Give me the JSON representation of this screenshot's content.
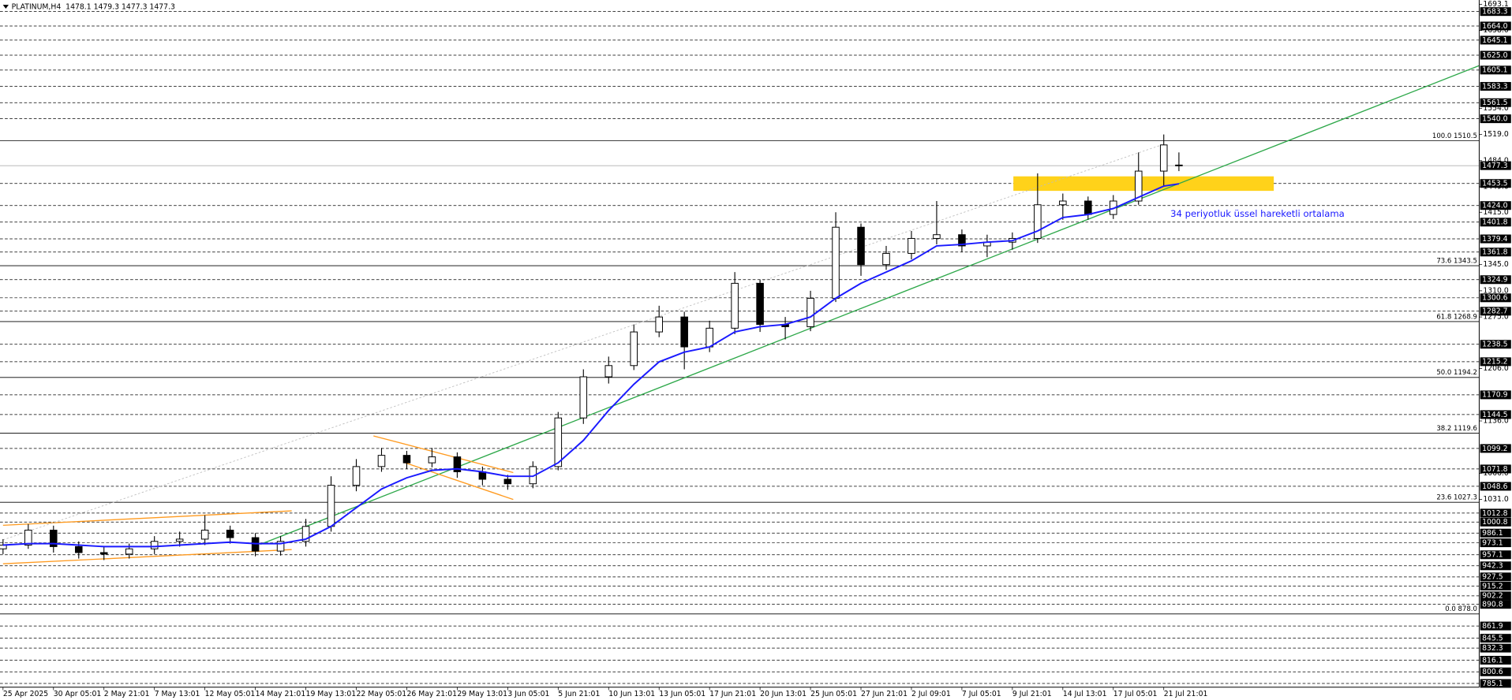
{
  "chart_data": {
    "type": "candlestick",
    "title": "PLATINUM,H4  1478.1 1479.3 1477.3 1477.3",
    "annotation": "34 periyotluk üssel hareketli ortalama",
    "annotation_color": "#1a1aff",
    "up_color": "#ffffff",
    "down_color": "#000000",
    "wick_color": "#000000",
    "x": [
      0,
      0.5,
      1,
      1.5,
      2,
      2.5,
      3,
      3.5,
      4,
      4.5,
      5,
      5.5,
      6,
      6.5,
      7,
      7.5,
      8,
      8.5,
      9,
      9.5,
      10,
      10.5,
      11,
      11.5,
      12,
      12.5,
      13,
      13.5,
      14,
      14.5,
      15,
      15.5,
      16,
      16.5,
      17,
      17.5,
      18,
      18.5,
      19,
      19.5,
      20,
      20.5,
      21,
      21.5,
      22,
      22.5,
      23,
      23.3
    ],
    "open": [
      965,
      970,
      990,
      968,
      960,
      958,
      965,
      975,
      978,
      990,
      980,
      962,
      975,
      995,
      1050,
      1075,
      1090,
      1080,
      1088,
      1068,
      1058,
      1052,
      1075,
      1140,
      1195,
      1210,
      1255,
      1275,
      1235,
      1260,
      1320,
      1265,
      1262,
      1300,
      1395,
      1345,
      1360,
      1380,
      1385,
      1370,
      1375,
      1380,
      1425,
      1430,
      1412,
      1430,
      1470,
      1478.1
    ],
    "high": [
      978,
      998,
      996,
      975,
      968,
      972,
      982,
      988,
      1010,
      996,
      986,
      982,
      1005,
      1062,
      1085,
      1100,
      1096,
      1100,
      1094,
      1075,
      1064,
      1082,
      1148,
      1205,
      1222,
      1265,
      1290,
      1282,
      1270,
      1335,
      1325,
      1275,
      1310,
      1415,
      1400,
      1370,
      1390,
      1430,
      1392,
      1385,
      1388,
      1467,
      1440,
      1436,
      1438,
      1495,
      1519,
      1495
    ],
    "low": [
      958,
      965,
      960,
      952,
      950,
      952,
      958,
      968,
      970,
      972,
      955,
      956,
      968,
      988,
      1042,
      1068,
      1072,
      1074,
      1060,
      1050,
      1044,
      1046,
      1070,
      1132,
      1186,
      1204,
      1248,
      1205,
      1228,
      1252,
      1255,
      1245,
      1256,
      1295,
      1330,
      1338,
      1352,
      1372,
      1362,
      1355,
      1365,
      1374,
      1405,
      1405,
      1406,
      1425,
      1450,
      1470
    ],
    "close": [
      970,
      990,
      968,
      960,
      958,
      965,
      975,
      978,
      990,
      980,
      962,
      975,
      995,
      1050,
      1075,
      1090,
      1080,
      1088,
      1068,
      1058,
      1052,
      1075,
      1140,
      1195,
      1210,
      1255,
      1275,
      1235,
      1260,
      1320,
      1265,
      1262,
      1300,
      1395,
      1345,
      1360,
      1380,
      1385,
      1370,
      1375,
      1380,
      1425,
      1430,
      1412,
      1430,
      1470,
      1505,
      1477.3
    ],
    "ema": {
      "color": "#1a1aff",
      "values": [
        970,
        972,
        972,
        970,
        968,
        968,
        968,
        970,
        972,
        974,
        972,
        972,
        978,
        995,
        1020,
        1045,
        1060,
        1070,
        1072,
        1068,
        1062,
        1062,
        1080,
        1110,
        1150,
        1185,
        1215,
        1228,
        1235,
        1255,
        1262,
        1265,
        1275,
        1300,
        1320,
        1335,
        1350,
        1370,
        1372,
        1375,
        1377,
        1390,
        1408,
        1412,
        1420,
        1435,
        1450,
        1453
      ]
    },
    "lines": [
      {
        "x": [
          5.1,
          29.25
        ],
        "y": [
          971,
          1611
        ],
        "color": "#2ea84a",
        "dash": false
      },
      {
        "x": [
          0,
          5.72
        ],
        "y": [
          996.5,
          1015.8
        ],
        "color": "#ff9a1f",
        "dash": false
      },
      {
        "x": [
          0,
          5.72
        ],
        "y": [
          945,
          964
        ],
        "color": "#ff9a1f",
        "dash": false
      },
      {
        "x": [
          7.34,
          10.11
        ],
        "y": [
          1116,
          1067
        ],
        "color": "#ff9a1f",
        "dash": false
      },
      {
        "x": [
          7.97,
          10.11
        ],
        "y": [
          1080,
          1031
        ],
        "color": "#ff9a1f",
        "dash": false
      },
      {
        "x": [
          0,
          23
        ],
        "y": [
          977,
          1506
        ],
        "color": "#bdbdbd",
        "dash": true
      }
    ],
    "zones": [
      {
        "x": [
          20.02,
          25.18
        ],
        "y": [
          1443.6,
          1463
        ],
        "color": "#ffd21a"
      }
    ],
    "xlim": [
      -0.06,
      29.25
    ],
    "ylim": [
      780,
      1693.6
    ],
    "xticks": [
      {
        "value": 0,
        "label": "25 Apr 2025"
      },
      {
        "value": 1,
        "label": "30 Apr 05:01"
      },
      {
        "value": 2,
        "label": "2 May 21:01"
      },
      {
        "value": 3,
        "label": "7 May 13:01"
      },
      {
        "value": 4,
        "label": "12 May 05:01"
      },
      {
        "value": 5,
        "label": "14 May 21:01"
      },
      {
        "value": 6,
        "label": "19 May 13:01"
      },
      {
        "value": 7,
        "label": "22 May 05:01"
      },
      {
        "value": 8,
        "label": "26 May 21:01"
      },
      {
        "value": 9,
        "label": "29 May 13:01"
      },
      {
        "value": 10,
        "label": "3 Jun 05:01"
      },
      {
        "value": 11,
        "label": "5 Jun 21:01"
      },
      {
        "value": 12,
        "label": "10 Jun 13:01"
      },
      {
        "value": 13,
        "label": "13 Jun 05:01"
      },
      {
        "value": 14,
        "label": "17 Jun 21:01"
      },
      {
        "value": 15,
        "label": "20 Jun 13:01"
      },
      {
        "value": 16,
        "label": "25 Jun 05:01"
      },
      {
        "value": 17,
        "label": "27 Jun 21:01"
      },
      {
        "value": 18,
        "label": "2 Jul 09:01"
      },
      {
        "value": 19,
        "label": "7 Jul 05:01"
      },
      {
        "value": 20,
        "label": "9 Jul 21:01"
      },
      {
        "value": 21,
        "label": "14 Jul 13:01"
      },
      {
        "value": 22,
        "label": "17 Jul 05:01"
      },
      {
        "value": 23,
        "label": "21 Jul 21:01"
      }
    ],
    "yticks": [
      1693.1,
      {
        "value": 1658,
        "label": "1658.0"
      },
      {
        "value": 1554,
        "label": "1554.0"
      },
      {
        "value": 1519,
        "label": "1519.0"
      },
      {
        "value": 1484,
        "label": "1484.0"
      },
      {
        "value": 1449,
        "label": "1449.0"
      },
      {
        "value": 1415,
        "label": "1415.0"
      },
      {
        "value": 1345,
        "label": "1345.0"
      },
      {
        "value": 1310,
        "label": "1310.0"
      },
      {
        "value": 1275,
        "label": "1275.0"
      },
      {
        "value": 1206,
        "label": "1206.0"
      },
      {
        "value": 1136,
        "label": "1136.0"
      },
      {
        "value": 1066,
        "label": "1066.0"
      },
      {
        "value": 1031,
        "label": "1031.0"
      }
    ],
    "levels": [
      1683.3,
      {
        "value": 1664,
        "label": "1664.0"
      },
      1645.1,
      {
        "value": 1625,
        "label": "1625.0"
      },
      1605.1,
      1583.3,
      1561.5,
      {
        "value": 1540,
        "label": "1540.0"
      },
      1453.5,
      {
        "value": 1424,
        "label": "1424.0"
      },
      1401.8,
      1379.4,
      1361.8,
      1324.9,
      1300.6,
      1282.7,
      1238.5,
      1215.2,
      1170.9,
      1144.5,
      1099.2,
      1071.8,
      1048.6,
      1012.8,
      1000.8,
      986.1,
      973.1,
      957.1,
      942.3,
      927.5,
      915.2,
      902.2,
      890.8,
      861.9,
      845.5,
      832.3,
      816.1,
      800.6,
      785.1
    ],
    "last_price": 1477.3,
    "fib_levels": [
      {
        "value": 1510.5,
        "label": "100.0 1510.5"
      },
      {
        "value": 1343.5,
        "label": "73.6 1343.5"
      },
      {
        "value": 1268.9,
        "label": "61.8 1268.9"
      },
      {
        "value": 1194.2,
        "label": "50.0 1194.2"
      },
      {
        "value": 1119.6,
        "label": "38.2 1119.6"
      },
      {
        "value": 1027.3,
        "label": "23.6 1027.3"
      },
      {
        "value": 878,
        "label": "0.0 878.0"
      }
    ]
  }
}
